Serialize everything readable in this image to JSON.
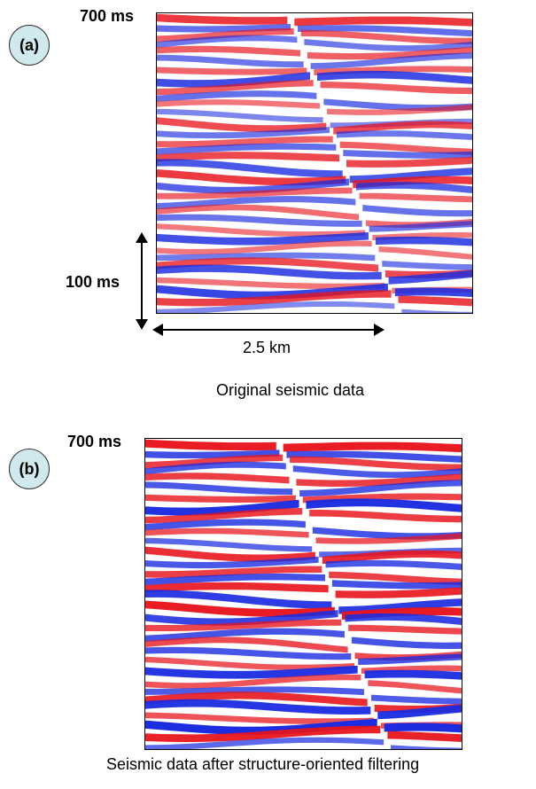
{
  "panel_a": {
    "badge": "(a)",
    "time_label": "700 ms",
    "vertical_scale": "100 ms",
    "horizontal_scale": "2.5 km",
    "caption": "Original seismic data"
  },
  "panel_b": {
    "badge": "(b)",
    "time_label": "700 ms",
    "caption": "Seismic data after structure-oriented filtering"
  },
  "colors": {
    "positive": "#e8141c",
    "negative": "#1a2be0",
    "background": "#ffffff"
  }
}
